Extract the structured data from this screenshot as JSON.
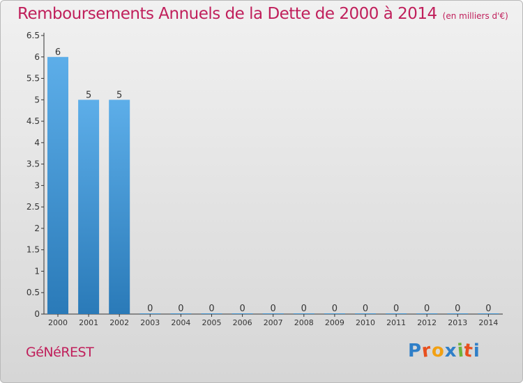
{
  "title": "Remboursements Annuels de la Dette de 2000 à 2014",
  "subtitle": "(en milliers d'€)",
  "commune": "GéNéREST",
  "brand": {
    "letters": [
      "P",
      "r",
      "o",
      "x",
      "i",
      "t",
      "i"
    ],
    "colors": [
      "#2f7fc8",
      "#e8501e",
      "#f2a012",
      "#2f7fc8",
      "#6fb33a",
      "#e8501e",
      "#2f7fc8"
    ]
  },
  "colors": {
    "title": "#c01f5b",
    "bar_top": "#5daee9",
    "bar_bottom": "#2a7ab8",
    "axis": "#333333"
  },
  "chart_data": {
    "type": "bar",
    "categories": [
      "2000",
      "2001",
      "2002",
      "2003",
      "2004",
      "2005",
      "2006",
      "2007",
      "2008",
      "2009",
      "2010",
      "2011",
      "2012",
      "2013",
      "2014"
    ],
    "values": [
      6,
      5,
      5,
      0,
      0,
      0,
      0,
      0,
      0,
      0,
      0,
      0,
      0,
      0,
      0
    ],
    "data_labels": [
      "6",
      "5",
      "5",
      "0",
      "0",
      "0",
      "0",
      "0",
      "0",
      "0",
      "0",
      "0",
      "0",
      "0",
      "0"
    ],
    "yticks": [
      "0",
      "0.5",
      "1",
      "1.5",
      "2",
      "2.5",
      "3",
      "3.5",
      "4",
      "4.5",
      "5",
      "5.5",
      "6",
      "6.5"
    ],
    "ylim": [
      0,
      6.5
    ],
    "grid": false
  }
}
